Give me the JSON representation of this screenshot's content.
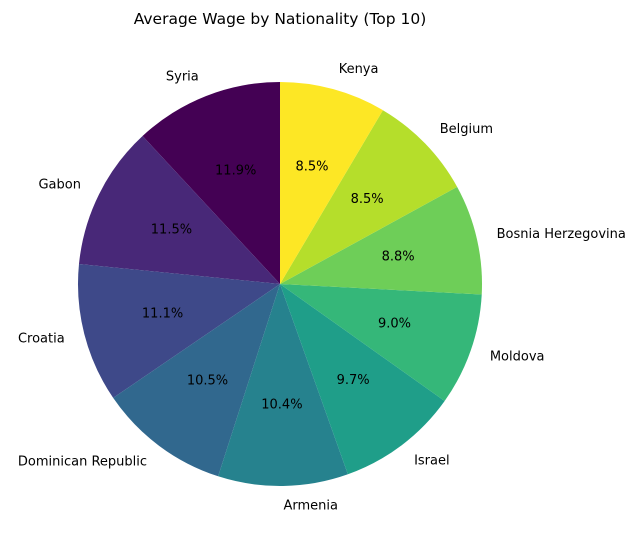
{
  "chart_data": {
    "type": "pie",
    "title": "Average Wage by Nationality (Top 10)",
    "start_angle_deg": 90,
    "direction": "counterclockwise",
    "slices": [
      {
        "label": "Syria",
        "value": 11.9,
        "pct_label": "11.9%",
        "color": "#440154"
      },
      {
        "label": "Gabon",
        "value": 11.5,
        "pct_label": "11.5%",
        "color": "#482878"
      },
      {
        "label": "Croatia",
        "value": 11.1,
        "pct_label": "11.1%",
        "color": "#3e4989"
      },
      {
        "label": "Dominican Republic",
        "value": 10.5,
        "pct_label": "10.5%",
        "color": "#31688e"
      },
      {
        "label": "Armenia",
        "value": 10.4,
        "pct_label": "10.4%",
        "color": "#26828e"
      },
      {
        "label": "Israel",
        "value": 9.7,
        "pct_label": "9.7%",
        "color": "#1f9e89"
      },
      {
        "label": "Moldova",
        "value": 9.0,
        "pct_label": "9.0%",
        "color": "#35b779"
      },
      {
        "label": "Bosnia Herzegovina",
        "value": 8.8,
        "pct_label": "8.8%",
        "color": "#6ece58"
      },
      {
        "label": "Belgium",
        "value": 8.5,
        "pct_label": "8.5%",
        "color": "#b5de2b"
      },
      {
        "label": "Kenya",
        "value": 8.5,
        "pct_label": "8.5%",
        "color": "#fde725"
      }
    ]
  }
}
